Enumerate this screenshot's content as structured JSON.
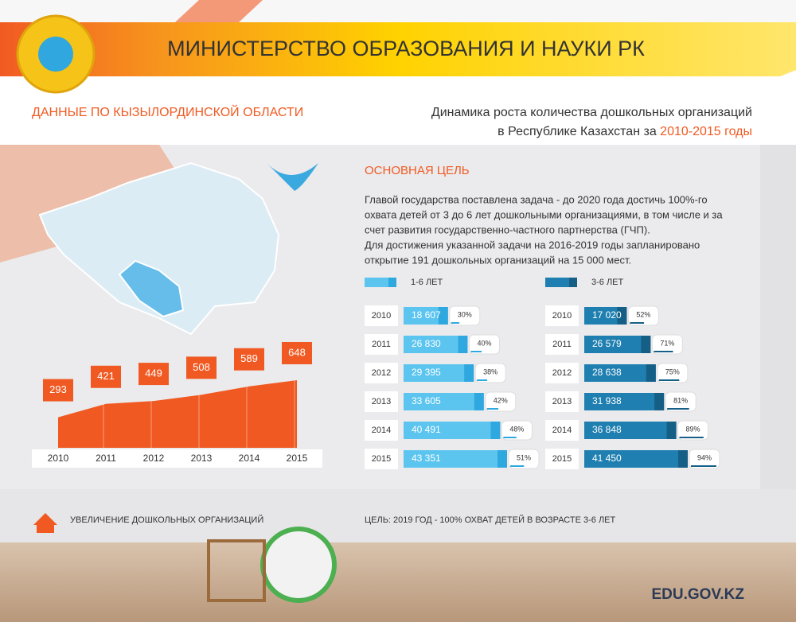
{
  "header": {
    "title": "МИНИСТЕРСТВО ОБРАЗОВАНИЯ И НАУКИ РК",
    "region": "ДАННЫЕ ПО КЫЗЫЛОРДИНСКОЙ ОБЛАСТИ",
    "subtitle_line1": "Динамика роста количества дошкольных организаций",
    "subtitle_line2": "в Республике Казахстан за",
    "subtitle_years": "2010-2015 годы"
  },
  "goal": {
    "title": "ОСНОВНАЯ ЦЕЛЬ",
    "lines": [
      "Главой государства поставлена задача - до 2020 года достичь 100%-го",
      "охвата детей от 3 до 6 лет дошкольными организациями, в том числе и за",
      "счет развития государственно-частного партнерства (ГЧП).",
      "Для достижения указанной задачи на 2016-2019 годы запланировано",
      "открытие 191 дошкольных организаций на 15 000 мест."
    ]
  },
  "chart_data": [
    {
      "type": "area",
      "caption": "УВЕЛИЧЕНИЕ ДОШКОЛЬНЫХ ОРГАНИЗАЦИЙ",
      "categories": [
        "2010",
        "2011",
        "2012",
        "2013",
        "2014",
        "2015"
      ],
      "values": [
        293,
        421,
        449,
        508,
        589,
        648
      ],
      "color": "#f05a22"
    },
    {
      "type": "bar",
      "orientation": "horizontal",
      "title": "1-6 ЛЕТ",
      "categories": [
        "2010",
        "2011",
        "2012",
        "2013",
        "2014",
        "2015"
      ],
      "values": [
        18607,
        26830,
        29395,
        33605,
        40491,
        43351
      ],
      "value_labels": [
        "18 607",
        "26 830",
        "29 395",
        "33 605",
        "40 491",
        "43 351"
      ],
      "percents": [
        30,
        40,
        38,
        42,
        48,
        51
      ],
      "percent_labels": [
        "30%",
        "40%",
        "38%",
        "42%",
        "48%",
        "51%"
      ],
      "color": "#5bc5f0",
      "accent": "#2fa8e0"
    },
    {
      "type": "bar",
      "orientation": "horizontal",
      "title": "3-6 ЛЕТ",
      "categories": [
        "2010",
        "2011",
        "2012",
        "2013",
        "2014",
        "2015"
      ],
      "values": [
        17020,
        26579,
        28638,
        31938,
        36848,
        41450
      ],
      "value_labels": [
        "17 020",
        "26 579",
        "28 638",
        "31 938",
        "36 848",
        "41 450"
      ],
      "percents": [
        52,
        71,
        75,
        81,
        89,
        94
      ],
      "percent_labels": [
        "52%",
        "71%",
        "75%",
        "81%",
        "89%",
        "94%"
      ],
      "color": "#1f7fb0",
      "accent": "#155f87"
    }
  ],
  "footer": {
    "goal": "ЦЕЛЬ: 2019 ГОД - 100% ОХВАТ ДЕТЕЙ В ВОЗРАСТЕ 3-6 ЛЕТ",
    "site": "EDU.GOV.KZ"
  }
}
